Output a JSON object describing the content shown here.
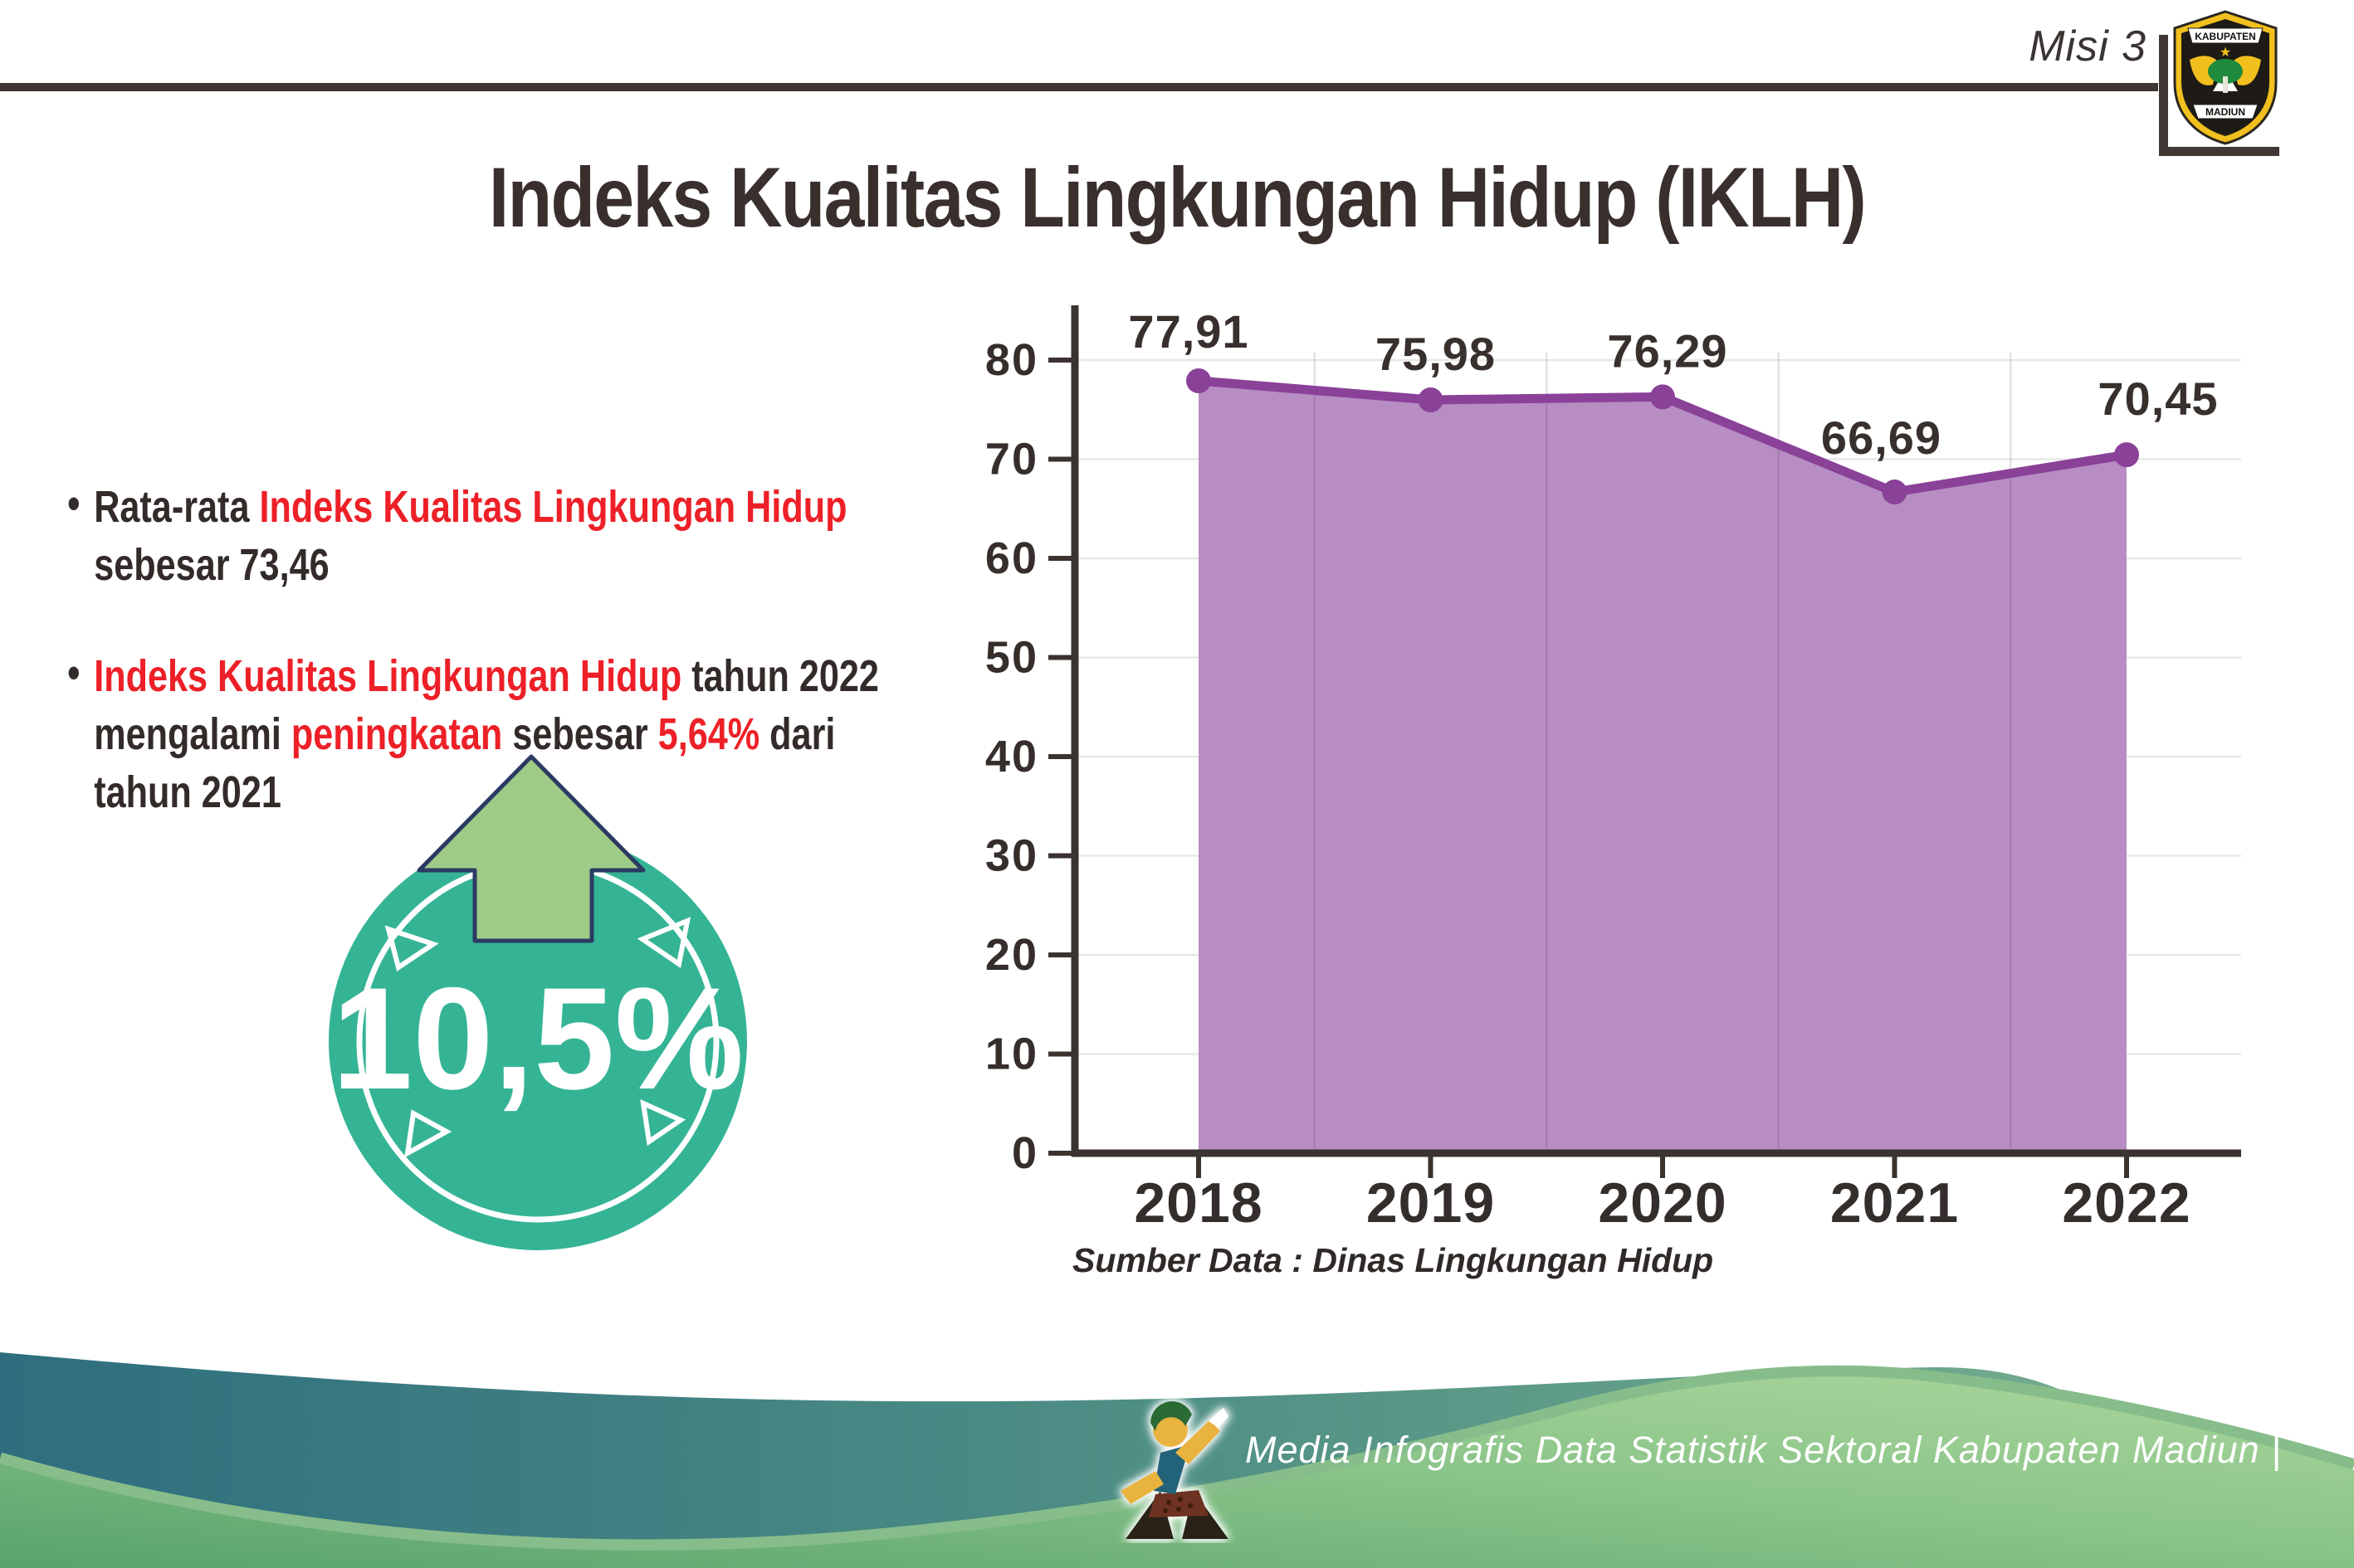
{
  "header": {
    "misi": "Misi 3",
    "title": "Indeks Kualitas Lingkungan Hidup (IKLH)",
    "logo": {
      "top_text": "KABUPATEN",
      "bottom_text": "MADIUN"
    }
  },
  "bullets": {
    "b1s1": "Rata-rata ",
    "b1s2": "Indeks Kualitas Lingkungan Hidup",
    "b1s3": "sebesar 73,46",
    "b2s1": "Indeks Kualitas Lingkungan Hidup",
    "b2s2": " tahun 2022",
    "b2s3": "mengalami ",
    "b2s4": "peningkatan",
    "b2s5": " sebesar ",
    "b2s6": "5,64%",
    "b2s7": " dari",
    "b2s8": "tahun 2021",
    "bullet_glyph": "•"
  },
  "badge": {
    "value": "10,5%"
  },
  "chart_data": {
    "type": "area",
    "categories": [
      "2018",
      "2019",
      "2020",
      "2021",
      "2022"
    ],
    "values": [
      77.91,
      75.98,
      76.29,
      66.69,
      70.45
    ],
    "point_labels": [
      "77,91",
      "75,98",
      "76,29",
      "66,69",
      "70,45"
    ],
    "title": "",
    "xlabel": "",
    "ylabel": "",
    "ylim": [
      0,
      80
    ],
    "yticks": [
      0,
      10,
      20,
      30,
      40,
      50,
      60,
      70,
      80
    ],
    "grid": "horizontal gridlines at each ytick; faint vertical gridlines between categories",
    "legend": "none",
    "line_color": "#8a4198",
    "fill_color": "#b78dc3",
    "source_note": "Sumber Data : Dinas Lingkungan Hidup"
  },
  "footer": {
    "credit": "Media Infografis Data Statistik Sektoral Kabupaten Madiun |"
  },
  "colors": {
    "text_dark": "#332b29",
    "accent_red": "#ed2028",
    "badge_teal": "#35b495",
    "arrow_green": "#9ecb86",
    "arrow_outline": "#2b3a63",
    "axis_dark": "#3a3330",
    "footer_teal_dark": "#2e6e7e",
    "footer_green_light": "#a9d59a"
  }
}
